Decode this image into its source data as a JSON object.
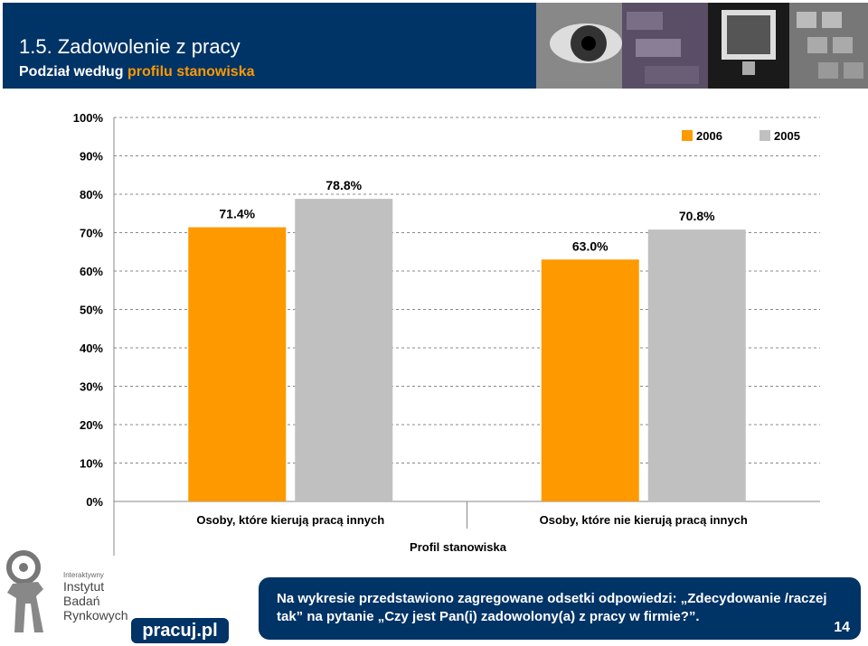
{
  "header": {
    "title": "1.5. Zadowolenie z pracy",
    "subtitle_prefix": "Podział według ",
    "subtitle_highlight": "profilu stanowiska"
  },
  "colors": {
    "header_bg": "#003366",
    "highlight": "#ff9900",
    "series_2006": "#ff9900",
    "series_2005": "#c0c0c0"
  },
  "chart_data": {
    "type": "bar",
    "categories": [
      "Osoby, które kierują pracą innych",
      "Osoby, które nie kierują pracą innych"
    ],
    "series": [
      {
        "name": "2006",
        "values": [
          71.4,
          63.0
        ],
        "labels": [
          "71.4%",
          "63.0%"
        ]
      },
      {
        "name": "2005",
        "values": [
          78.8,
          70.8
        ],
        "labels": [
          "78.8%",
          "70.8%"
        ]
      }
    ],
    "yticks": [
      "0%",
      "10%",
      "20%",
      "30%",
      "40%",
      "50%",
      "60%",
      "70%",
      "80%",
      "90%",
      "100%"
    ],
    "ylim": [
      0,
      100
    ],
    "xlabel": "Profil stanowiska",
    "ylabel": "",
    "grid": true,
    "legend_position": "top-right"
  },
  "footer": {
    "note": "Na wykresie przedstawiono zagregowane odsetki odpowiedzi: „Zdecydowanie /raczej tak” na pytanie „Czy jest Pan(i) zadowolony(a) z pracy w firmie?”.",
    "page_number": "14"
  },
  "logos": {
    "iibr_small": "Interaktywny",
    "iibr_line1": "Instytut",
    "iibr_line2": "Badań",
    "iibr_line3": "Rynkowych",
    "pracuj": "pracuj.pl"
  }
}
